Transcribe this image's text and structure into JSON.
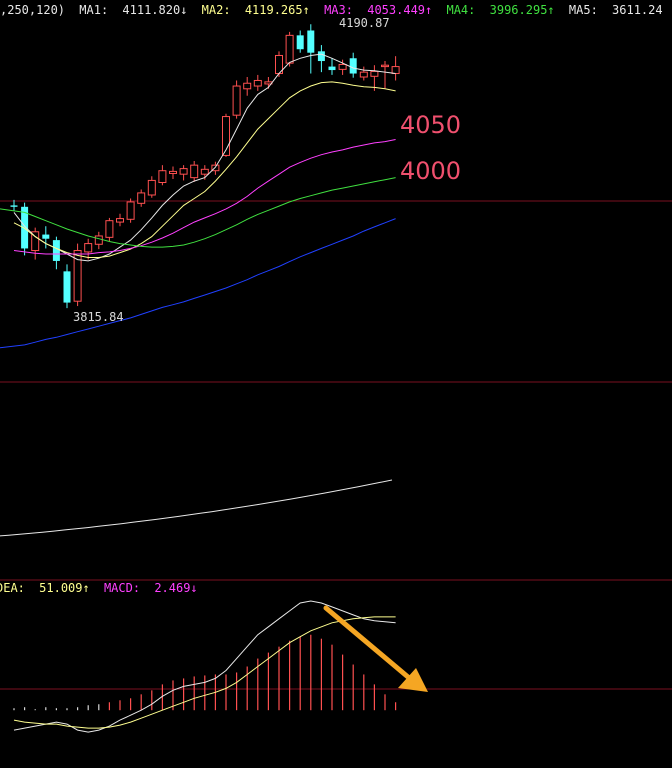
{
  "ma_header": {
    "params": ",250,120)",
    "ma1_label": "MA1:",
    "ma1_value": "4111.820↓",
    "ma2_label": "MA2:",
    "ma2_value": "4119.265↑",
    "ma3_label": "MA3:",
    "ma3_value": "4053.449↑",
    "ma4_label": "MA4:",
    "ma4_value": "3996.295↑",
    "ma5_label": "MA5:",
    "ma5_value": "3611.24"
  },
  "macd_header": {
    "dea_label": "DEA:",
    "dea_value": "51.009↑",
    "macd_label": "MACD:",
    "macd_value": "2.469↓"
  },
  "annotations": {
    "level_4050": "4050",
    "level_4000": "4000",
    "peak_high": "4190.87",
    "peak_low": "3815.84"
  },
  "colors": {
    "up": "#ff5050",
    "down": "#54ffff",
    "ma1": "#e8e8e8",
    "ma2": "#ffff90",
    "ma3": "#ff40ff",
    "ma4": "#40e040",
    "ma5": "#2040ff",
    "grid": "#7a1020",
    "arrow": "#f5a623",
    "label": "#f0506e"
  },
  "chart_data": {
    "type": "candlestick",
    "price_range": [
      3720,
      4230
    ],
    "candles": [
      {
        "o": 3960,
        "h": 3968,
        "l": 3952,
        "c": 3958
      },
      {
        "o": 3958,
        "h": 3964,
        "l": 3888,
        "c": 3898
      },
      {
        "o": 3895,
        "h": 3928,
        "l": 3882,
        "c": 3922
      },
      {
        "o": 3918,
        "h": 3930,
        "l": 3898,
        "c": 3912
      },
      {
        "o": 3910,
        "h": 3915,
        "l": 3868,
        "c": 3880
      },
      {
        "o": 3865,
        "h": 3875,
        "l": 3812,
        "c": 3820
      },
      {
        "o": 3822,
        "h": 3905,
        "l": 3815,
        "c": 3895
      },
      {
        "o": 3893,
        "h": 3912,
        "l": 3882,
        "c": 3905
      },
      {
        "o": 3904,
        "h": 3922,
        "l": 3897,
        "c": 3916
      },
      {
        "o": 3914,
        "h": 3942,
        "l": 3908,
        "c": 3938
      },
      {
        "o": 3936,
        "h": 3948,
        "l": 3930,
        "c": 3941
      },
      {
        "o": 3940,
        "h": 3970,
        "l": 3935,
        "c": 3965
      },
      {
        "o": 3963,
        "h": 3983,
        "l": 3958,
        "c": 3978
      },
      {
        "o": 3975,
        "h": 4002,
        "l": 3971,
        "c": 3996
      },
      {
        "o": 3993,
        "h": 4018,
        "l": 3989,
        "c": 4010
      },
      {
        "o": 4006,
        "h": 4016,
        "l": 3998,
        "c": 4009
      },
      {
        "o": 4005,
        "h": 4018,
        "l": 3996,
        "c": 4013
      },
      {
        "o": 4000,
        "h": 4024,
        "l": 3994,
        "c": 4018
      },
      {
        "o": 4005,
        "h": 4018,
        "l": 3997,
        "c": 4012
      },
      {
        "o": 4010,
        "h": 4023,
        "l": 4004,
        "c": 4018
      },
      {
        "o": 4032,
        "h": 4092,
        "l": 4030,
        "c": 4088
      },
      {
        "o": 4090,
        "h": 4140,
        "l": 4085,
        "c": 4132
      },
      {
        "o": 4128,
        "h": 4145,
        "l": 4118,
        "c": 4136
      },
      {
        "o": 4132,
        "h": 4148,
        "l": 4125,
        "c": 4140
      },
      {
        "o": 4135,
        "h": 4145,
        "l": 4128,
        "c": 4138
      },
      {
        "o": 4150,
        "h": 4182,
        "l": 4145,
        "c": 4176
      },
      {
        "o": 4165,
        "h": 4210,
        "l": 4160,
        "c": 4205
      },
      {
        "o": 4205,
        "h": 4212,
        "l": 4180,
        "c": 4185
      },
      {
        "o": 4212,
        "h": 4221,
        "l": 4150,
        "c": 4180
      },
      {
        "o": 4182,
        "h": 4191,
        "l": 4152,
        "c": 4168
      },
      {
        "o": 4160,
        "h": 4172,
        "l": 4148,
        "c": 4155
      },
      {
        "o": 4156,
        "h": 4170,
        "l": 4148,
        "c": 4163
      },
      {
        "o": 4172,
        "h": 4180,
        "l": 4144,
        "c": 4150
      },
      {
        "o": 4145,
        "h": 4160,
        "l": 4140,
        "c": 4152
      },
      {
        "o": 4146,
        "h": 4162,
        "l": 4125,
        "c": 4153
      },
      {
        "o": 4160,
        "h": 4168,
        "l": 4128,
        "c": 4162
      },
      {
        "o": 4150,
        "h": 4175,
        "l": 4140,
        "c": 4160
      }
    ],
    "ma_series": [
      {
        "key": "ma1",
        "values": [
          3950,
          3930,
          3915,
          3905,
          3898,
          3890,
          3882,
          3880,
          3884,
          3890,
          3900,
          3910,
          3925,
          3942,
          3960,
          3975,
          3988,
          3995,
          4000,
          4015,
          4040,
          4070,
          4100,
          4120,
          4130,
          4150,
          4166,
          4172,
          4176,
          4178,
          4172,
          4165,
          4158,
          4155,
          4154,
          4152,
          4150
        ]
      },
      {
        "key": "ma2",
        "values": [
          3935,
          3927,
          3915,
          3905,
          3898,
          3892,
          3888,
          3885,
          3885,
          3887,
          3892,
          3897,
          3905,
          3915,
          3930,
          3945,
          3960,
          3970,
          3980,
          3995,
          4012,
          4030,
          4050,
          4070,
          4085,
          4100,
          4115,
          4125,
          4132,
          4137,
          4138,
          4136,
          4133,
          4131,
          4130,
          4128,
          4125
        ]
      },
      {
        "key": "ma3",
        "values": [
          3895,
          3893,
          3891,
          3890,
          3890,
          3890,
          3890,
          3890,
          3892,
          3893,
          3895,
          3898,
          3902,
          3907,
          3913,
          3920,
          3928,
          3936,
          3942,
          3948,
          3955,
          3963,
          3973,
          3985,
          3995,
          4005,
          4015,
          4022,
          4028,
          4033,
          4037,
          4040,
          4044,
          4047,
          4050,
          4052,
          4055
        ]
      },
      {
        "key": "ma4",
        "values": [
          3955,
          3950,
          3944,
          3938,
          3932,
          3926,
          3921,
          3916,
          3912,
          3908,
          3905,
          3903,
          3901,
          3900,
          3900,
          3901,
          3903,
          3907,
          3912,
          3918,
          3925,
          3932,
          3940,
          3947,
          3953,
          3959,
          3965,
          3970,
          3974,
          3978,
          3982,
          3985,
          3988,
          3991,
          3994,
          3997,
          4000
        ]
      },
      {
        "key": "ma5",
        "values": [
          3755,
          3759,
          3763,
          3767,
          3770,
          3774,
          3778,
          3782,
          3786,
          3790,
          3794,
          3798,
          3803,
          3808,
          3813,
          3817,
          3821,
          3826,
          3831,
          3836,
          3841,
          3847,
          3853,
          3860,
          3866,
          3872,
          3879,
          3886,
          3892,
          3898,
          3904,
          3910,
          3916,
          3923,
          3929,
          3935,
          3941
        ]
      }
    ],
    "macd": {
      "range": [
        -30,
        115
      ],
      "hist": [
        2,
        3,
        1,
        3,
        2,
        2,
        3,
        5,
        6,
        8,
        10,
        12,
        16,
        20,
        26,
        30,
        32,
        34,
        35,
        36,
        36,
        38,
        44,
        52,
        58,
        64,
        70,
        74,
        76,
        72,
        66,
        56,
        46,
        36,
        26,
        16,
        8
      ],
      "dif": [
        -20,
        -18,
        -16,
        -14,
        -12,
        -14,
        -20,
        -22,
        -20,
        -16,
        -10,
        -5,
        0,
        6,
        14,
        20,
        24,
        26,
        28,
        32,
        40,
        52,
        64,
        76,
        84,
        92,
        100,
        108,
        110,
        108,
        104,
        100,
        96,
        92,
        90,
        89,
        88
      ],
      "dea": [
        -10,
        -12,
        -13,
        -14,
        -14,
        -16,
        -17,
        -18,
        -18,
        -17,
        -15,
        -12,
        -8,
        -4,
        0,
        4,
        8,
        12,
        15,
        18,
        22,
        28,
        36,
        44,
        52,
        60,
        68,
        74,
        80,
        84,
        88,
        90,
        92,
        93,
        94,
        94,
        94
      ]
    }
  }
}
